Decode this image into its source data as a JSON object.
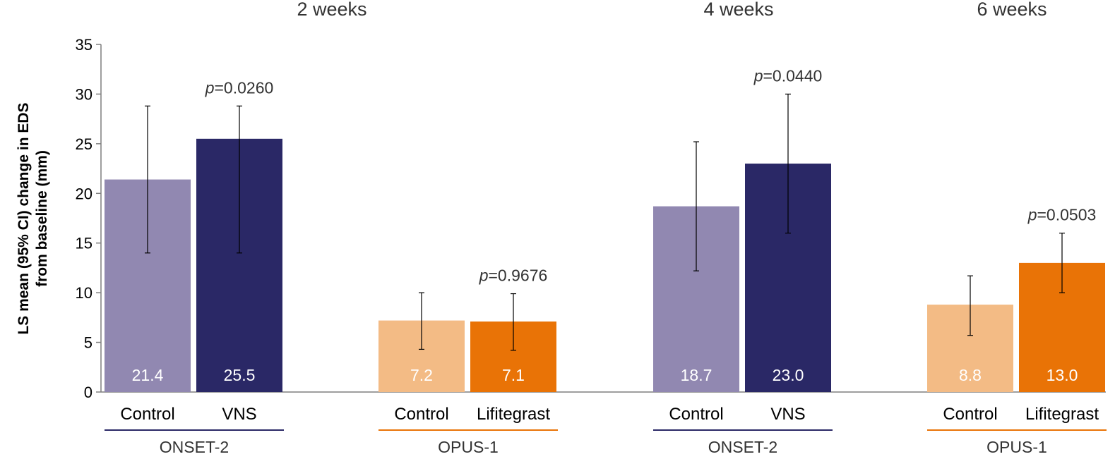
{
  "chart_data": {
    "type": "bar",
    "ylabel": "LS mean (95% CI) change in EDS from baseline (mm)",
    "ylim": [
      0,
      35
    ],
    "yticks": [
      0,
      5,
      10,
      15,
      20,
      25,
      30,
      35
    ],
    "grid": false,
    "timepoints": [
      "2 weeks",
      "4 weeks",
      "6 weeks"
    ],
    "colors": {
      "onset_control": "#9188b1",
      "onset_vns": "#2a2866",
      "opus_control": "#f3bb85",
      "opus_lifitegrast": "#e97306",
      "onset_line": "#2a2866",
      "opus_line": "#e97306",
      "axis": "#7f7f7f",
      "text": "#000000",
      "annotation": "#333333"
    },
    "groups": [
      {
        "study": "ONSET-2",
        "timepoint": "2 weeks",
        "p_value": "=0.0260",
        "bars": [
          {
            "category": "Control",
            "value": 21.4,
            "label": "21.4",
            "ci_low": 14.0,
            "ci_high": 28.8,
            "color_key": "onset_control"
          },
          {
            "category": "VNS",
            "value": 25.5,
            "label": "25.5",
            "ci_low": 14.0,
            "ci_high": 28.8,
            "color_key": "onset_vns"
          }
        ]
      },
      {
        "study": "OPUS-1",
        "timepoint": "2 weeks",
        "p_value": "=0.9676",
        "bars": [
          {
            "category": "Control",
            "value": 7.2,
            "label": "7.2",
            "ci_low": 4.3,
            "ci_high": 10.0,
            "color_key": "opus_control"
          },
          {
            "category": "Lifitegrast",
            "value": 7.1,
            "label": "7.1",
            "ci_low": 4.2,
            "ci_high": 9.9,
            "color_key": "opus_lifitegrast"
          }
        ]
      },
      {
        "study": "ONSET-2",
        "timepoint": "4 weeks",
        "p_value": "=0.0440",
        "bars": [
          {
            "category": "Control",
            "value": 18.7,
            "label": "18.7",
            "ci_low": 12.2,
            "ci_high": 25.2,
            "color_key": "onset_control"
          },
          {
            "category": "VNS",
            "value": 23.0,
            "label": "23.0",
            "ci_low": 16.0,
            "ci_high": 30.0,
            "color_key": "onset_vns"
          }
        ]
      },
      {
        "study": "OPUS-1",
        "timepoint": "6 weeks",
        "p_value": "=0.0503",
        "bars": [
          {
            "category": "Control",
            "value": 8.8,
            "label": "8.8",
            "ci_low": 5.7,
            "ci_high": 11.7,
            "color_key": "opus_control"
          },
          {
            "category": "Lifitegrast",
            "value": 13.0,
            "label": "13.0",
            "ci_low": 10.0,
            "ci_high": 16.0,
            "color_key": "opus_lifitegrast"
          }
        ]
      }
    ],
    "p_prefix": "p"
  }
}
